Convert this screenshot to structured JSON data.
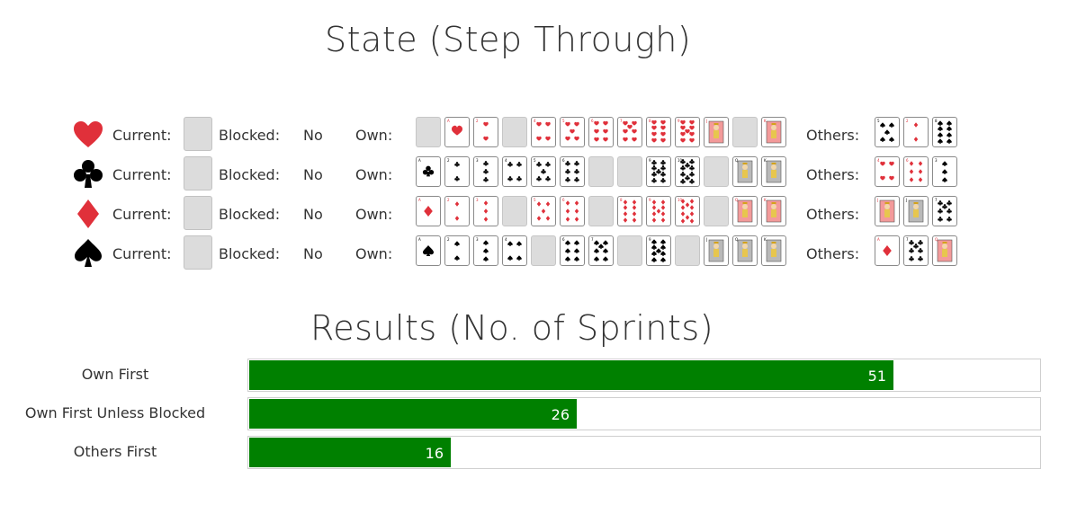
{
  "state_title": "State (Step Through)",
  "results_title": "Results (No. of Sprints)",
  "labels": {
    "current": "Current:",
    "blocked": "Blocked:",
    "own": "Own:",
    "others": "Others:"
  },
  "colors": {
    "red_suit": "#e0303a",
    "black_suit": "#000000",
    "bar_fill": "#008000",
    "empty_slot": "#dcdcdc"
  },
  "suits": [
    {
      "name": "hearts",
      "icon": "heart-icon",
      "color": "#e0303a",
      "blocked": "No",
      "own": [
        "empty",
        "A",
        "2",
        "empty",
        "4",
        "5",
        "6",
        "7",
        "8",
        "9",
        "J",
        "empty",
        "K"
      ],
      "others": [
        "5",
        "2",
        "8"
      ]
    },
    {
      "name": "clubs",
      "icon": "club-icon",
      "color": "#000000",
      "blocked": "No",
      "own": [
        "A",
        "2",
        "3",
        "4",
        "5",
        "6",
        "empty",
        "empty",
        "9",
        "10",
        "empty",
        "Q",
        "K"
      ],
      "others": [
        "4",
        "6",
        "3"
      ]
    },
    {
      "name": "diamonds",
      "icon": "diamond-icon",
      "color": "#e0303a",
      "blocked": "No",
      "own": [
        "A",
        "2",
        "3",
        "empty",
        "5",
        "6",
        "empty",
        "8",
        "9",
        "10",
        "empty",
        "Q",
        "K"
      ],
      "others": [
        "J",
        "J",
        "7"
      ]
    },
    {
      "name": "spades",
      "icon": "spade-icon",
      "color": "#000000",
      "blocked": "No",
      "own": [
        "A",
        "2",
        "3",
        "4",
        "empty",
        "6",
        "7",
        "empty",
        "9",
        "empty",
        "J",
        "Q",
        "K"
      ],
      "others": [
        "A",
        "7",
        "Q"
      ]
    }
  ],
  "others_suits": [
    [
      "spades",
      "diamonds",
      "spades"
    ],
    [
      "hearts",
      "diamonds",
      "spades"
    ],
    [
      "hearts",
      "spades",
      "clubs"
    ],
    [
      "diamonds",
      "clubs",
      "hearts"
    ]
  ],
  "results": [
    {
      "label": "Own First",
      "value": "51",
      "fraction": 0.815
    },
    {
      "label": "Own First Unless Blocked",
      "value": "26",
      "fraction": 0.415
    },
    {
      "label": "Others First",
      "value": "16",
      "fraction": 0.255
    }
  ]
}
